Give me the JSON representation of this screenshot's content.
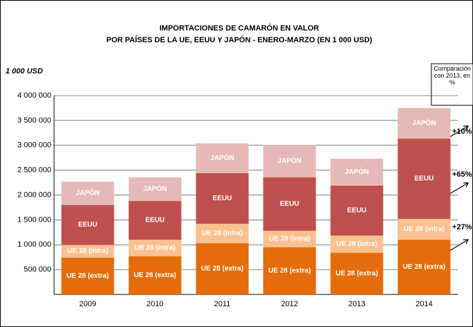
{
  "chart_data": {
    "type": "stacked_bar",
    "title": "IMPORTACIONES DE CAMARÓN EN VALOR",
    "subtitle": "POR PAÍSES DE LA UE, EEUU Y JAPÓN - ENERO-MARZO (EN 1 000 USD)",
    "y_axis_label": "1 000 USD",
    "comparison_label": "Comparación con 2013, en %",
    "annotations": [
      "+10%",
      "+65%",
      "+27%"
    ],
    "categories": [
      "2009",
      "2010",
      "2011",
      "2012",
      "2013",
      "2014"
    ],
    "series": [
      {
        "name": "UE 28 (extra)",
        "color": "#e46c0a",
        "values": [
          740000,
          770000,
          1030000,
          950000,
          840000,
          1100000
        ]
      },
      {
        "name": "UE 28 (intra)",
        "color": "#fac08f",
        "values": [
          260000,
          330000,
          390000,
          330000,
          345000,
          420000
        ]
      },
      {
        "name": "EEUU",
        "color": "#c0504d",
        "values": [
          800000,
          780000,
          1020000,
          1075000,
          1005000,
          1615000
        ]
      },
      {
        "name": "JAPÓN",
        "color": "#e6b9b8",
        "values": [
          470000,
          475000,
          600000,
          655000,
          540000,
          615000
        ]
      }
    ],
    "ylim": [
      0,
      4000000
    ],
    "yticks": [
      {
        "value": 500000,
        "label": "500 000"
      },
      {
        "value": 1000000,
        "label": "1 000 000"
      },
      {
        "value": 1500000,
        "label": "1 500 000"
      },
      {
        "value": 2000000,
        "label": "2 000 000"
      },
      {
        "value": 2500000,
        "label": "2 500 000"
      },
      {
        "value": 3000000,
        "label": "3 000 000"
      },
      {
        "value": 3500000,
        "label": "3 500 000"
      },
      {
        "value": 4000000,
        "label": "4 000 000"
      }
    ],
    "grid": true
  }
}
